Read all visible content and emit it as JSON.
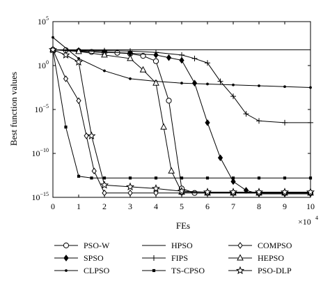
{
  "chart_data": {
    "type": "line",
    "xlabel": "FEs",
    "ylabel": "Best function values",
    "x_multiplier": "×10",
    "x_multiplier_exp": "4",
    "xlim": [
      0,
      10
    ],
    "ylim_log10": [
      -15,
      5
    ],
    "y_scale": "log",
    "grid": false,
    "legend_placement": "below-plot",
    "x_ticks": [
      0,
      1,
      2,
      3,
      4,
      5,
      6,
      7,
      8,
      9,
      10
    ],
    "y_ticks": [
      {
        "base": "10",
        "exp": "5",
        "value": 5
      },
      {
        "base": "10",
        "exp": "0",
        "value": 0
      },
      {
        "base": "10",
        "exp": "−5",
        "value": -5
      },
      {
        "base": "10",
        "exp": "−10",
        "value": -10
      },
      {
        "base": "10",
        "exp": "−15",
        "value": -15
      }
    ],
    "series": [
      {
        "name": "PSO-W",
        "marker": "circle",
        "x": [
          0,
          0.5,
          1,
          1.5,
          2,
          2.5,
          3,
          3.5,
          4,
          4.5,
          5,
          5.5,
          6,
          7,
          8,
          9,
          10
        ],
        "log10_y": [
          1.8,
          1.75,
          1.65,
          1.55,
          1.5,
          1.45,
          1.35,
          1.1,
          0.5,
          -4.0,
          -14.0,
          -14.5,
          -14.5,
          -14.5,
          -14.5,
          -14.5,
          -14.5
        ]
      },
      {
        "name": "SPSO",
        "marker": "diamond-filled",
        "x": [
          0,
          1,
          2,
          3,
          4,
          4.5,
          5,
          5.5,
          6,
          6.5,
          7,
          7.5,
          8,
          9,
          10
        ],
        "log10_y": [
          1.8,
          1.7,
          1.55,
          1.4,
          1.2,
          0.9,
          0.6,
          -2.0,
          -6.5,
          -10.5,
          -13.2,
          -14.2,
          -14.6,
          -14.6,
          -14.6
        ]
      },
      {
        "name": "CLPSO",
        "marker": "dot",
        "x": [
          0,
          1,
          2,
          3,
          4,
          5,
          6,
          7,
          8,
          9,
          10
        ],
        "log10_y": [
          3.2,
          0.8,
          -0.6,
          -1.5,
          -1.8,
          -2.0,
          -2.1,
          -2.2,
          -2.3,
          -2.4,
          -2.5
        ]
      },
      {
        "name": "HPSO",
        "marker": "none",
        "x": [
          0,
          1,
          2,
          3,
          4,
          5,
          6,
          7,
          8,
          9,
          10
        ],
        "log10_y": [
          1.8,
          1.8,
          1.8,
          1.8,
          1.8,
          1.8,
          1.8,
          1.8,
          1.8,
          1.8,
          1.8
        ]
      },
      {
        "name": "FIPS",
        "marker": "plus",
        "x": [
          0,
          1,
          2,
          3,
          4,
          5,
          5.5,
          6,
          6.5,
          7,
          7.5,
          8,
          9,
          10
        ],
        "log10_y": [
          1.8,
          1.75,
          1.7,
          1.65,
          1.5,
          1.2,
          0.8,
          0.3,
          -1.8,
          -3.5,
          -5.5,
          -6.3,
          -6.5,
          -6.5
        ]
      },
      {
        "name": "TS-CPSO",
        "marker": "square-small",
        "x": [
          0,
          0.5,
          1,
          1.5,
          2,
          3,
          4,
          5,
          6,
          7,
          8,
          9,
          10
        ],
        "log10_y": [
          1.8,
          -7.0,
          -12.6,
          -12.8,
          -12.8,
          -12.8,
          -12.8,
          -12.8,
          -12.8,
          -12.8,
          -12.8,
          -12.8,
          -12.8
        ]
      },
      {
        "name": "COMPSO",
        "marker": "diamond-open",
        "x": [
          0,
          0.5,
          1,
          1.3,
          1.6,
          2,
          3,
          4,
          5,
          6,
          7,
          8,
          9,
          10
        ],
        "log10_y": [
          1.8,
          -1.5,
          -4.0,
          -8.0,
          -12.0,
          -14.5,
          -14.5,
          -14.5,
          -14.5,
          -14.5,
          -14.5,
          -14.5,
          -14.5,
          -14.5
        ]
      },
      {
        "name": "HEPSO",
        "marker": "triangle",
        "x": [
          0,
          1,
          2,
          3,
          3.5,
          4,
          4.3,
          4.6,
          5,
          6,
          7,
          8,
          9,
          10
        ],
        "log10_y": [
          1.8,
          1.6,
          1.2,
          0.8,
          -0.5,
          -2.0,
          -7.0,
          -12.0,
          -14.4,
          -14.5,
          -14.5,
          -14.5,
          -14.5,
          -14.5
        ]
      },
      {
        "name": "PSO-DLP",
        "marker": "star",
        "x": [
          0,
          0.5,
          1,
          1.5,
          2,
          3,
          4,
          5,
          6,
          7,
          8,
          9,
          10
        ],
        "log10_y": [
          1.8,
          1.2,
          0.4,
          -8.0,
          -13.6,
          -13.8,
          -14.0,
          -14.3,
          -14.4,
          -14.4,
          -14.4,
          -14.4,
          -14.4
        ]
      }
    ]
  }
}
